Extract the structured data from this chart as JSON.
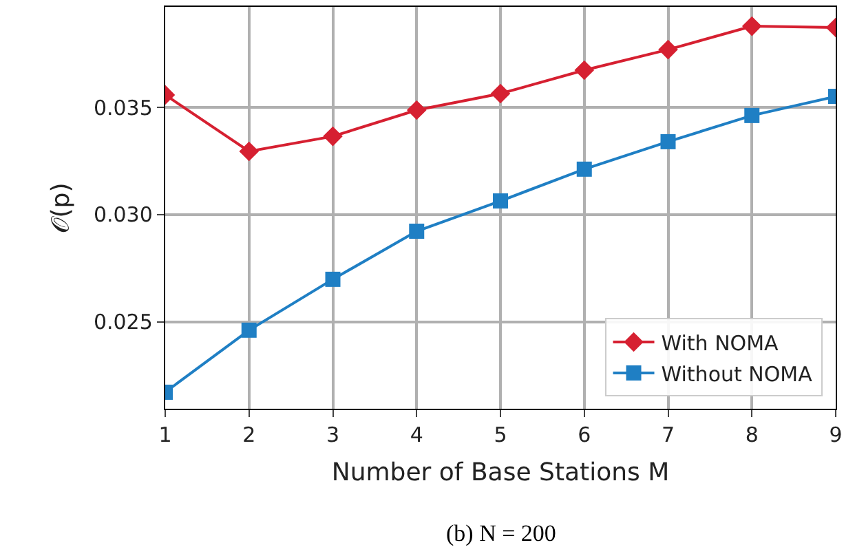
{
  "chart_data": {
    "type": "line",
    "x": [
      1,
      2,
      3,
      4,
      5,
      6,
      7,
      8,
      9
    ],
    "series": [
      {
        "name": "With NOMA",
        "color": "#d62031",
        "marker": "diamond",
        "values": [
          0.03558,
          0.03295,
          0.03365,
          0.03487,
          0.03564,
          0.03673,
          0.03769,
          0.03878,
          0.03872
        ]
      },
      {
        "name": "Without NOMA",
        "color": "#1f7fc4",
        "marker": "square",
        "values": [
          0.02173,
          0.02462,
          0.02699,
          0.02923,
          0.03064,
          0.03212,
          0.0334,
          0.03462,
          0.03551
        ]
      }
    ],
    "xlim": [
      1,
      9
    ],
    "xticks": [
      1,
      2,
      3,
      4,
      5,
      6,
      7,
      8,
      9
    ],
    "ylim": [
      0.02096,
      0.03968
    ],
    "yticks": [
      {
        "value": 0.025,
        "label": "0.025"
      },
      {
        "value": 0.03,
        "label": "0.030"
      },
      {
        "value": 0.035,
        "label": "0.035"
      }
    ],
    "xlabel": "Number of Base Stations M",
    "ylabel": "𝒪(p)",
    "annotations": [
      "(b) N = 200"
    ],
    "grid": true,
    "legend": "bottom right",
    "line_style": "solid"
  }
}
